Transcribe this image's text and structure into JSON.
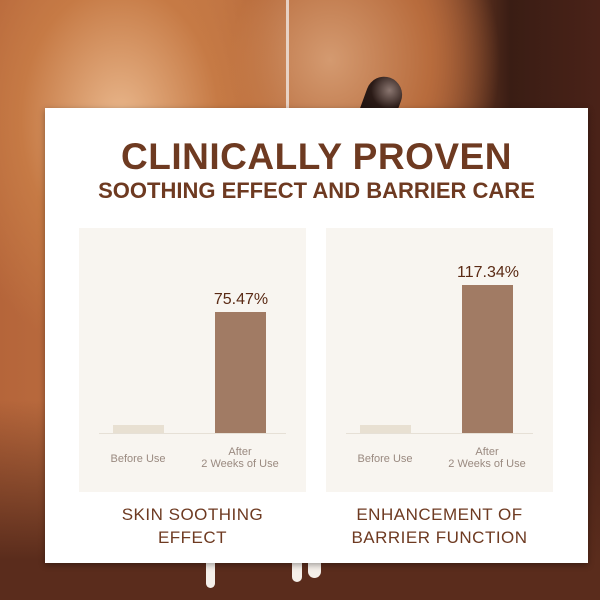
{
  "header": {
    "title": "CLINICALLY PROVEN",
    "subtitle": "SOOTHING EFFECT AND BARRIER CARE"
  },
  "colors": {
    "title": "#6e3a21",
    "bar_after": "#a17b64",
    "bar_before": "#e8e0d2",
    "panel": "#f8f5f0"
  },
  "chart_data": [
    {
      "type": "bar",
      "title": "SKIN SOOTHING EFFECT",
      "title_lines": [
        "SKIN SOOTHING",
        "EFFECT"
      ],
      "categories": [
        "Before Use",
        "After 2 Weeks of Use"
      ],
      "category_lines": [
        [
          "Before Use"
        ],
        [
          "After",
          "2 Weeks of Use"
        ]
      ],
      "values": [
        5,
        75.47
      ],
      "data_labels": [
        "",
        "75.47%"
      ],
      "ylim": [
        0,
        100
      ],
      "grid": false
    },
    {
      "type": "bar",
      "title": "ENHANCEMENT OF BARRIER FUNCTION",
      "title_lines": [
        "ENHANCEMENT OF",
        "BARRIER FUNCTION"
      ],
      "categories": [
        "Before Use",
        "After 2 Weeks of Use"
      ],
      "category_lines": [
        [
          "Before Use"
        ],
        [
          "After",
          "2 Weeks of Use"
        ]
      ],
      "values": [
        6.5,
        117.34
      ],
      "data_labels": [
        "",
        "117.34%"
      ],
      "ylim": [
        0,
        127
      ],
      "grid": false
    }
  ]
}
